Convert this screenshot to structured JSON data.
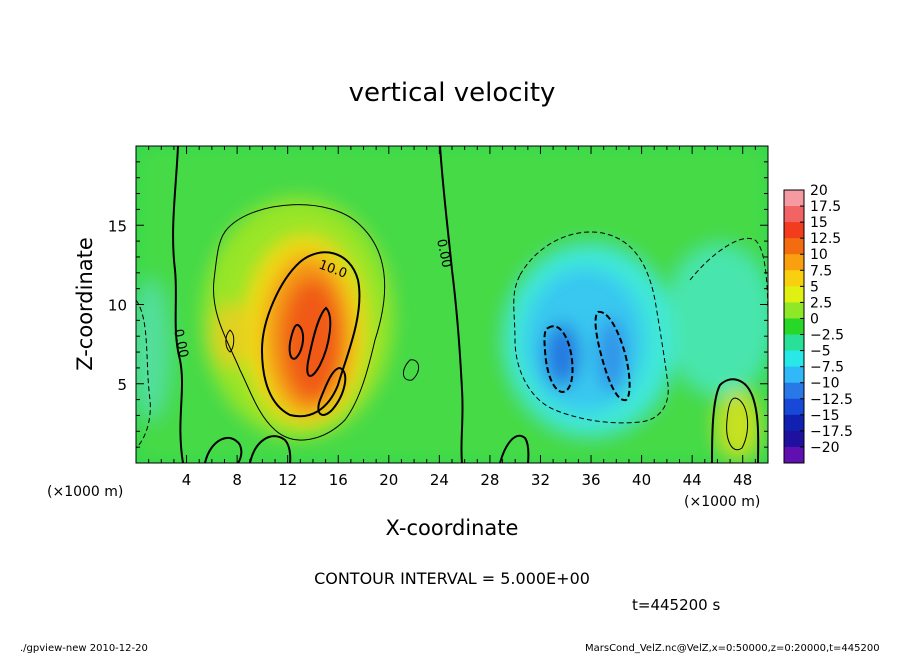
{
  "chart_data": {
    "type": "heatmap",
    "title": "vertical velocity",
    "xlabel": "X-coordinate",
    "ylabel": "Z-coordinate",
    "x_unit_left": "(×1000 m)",
    "x_unit_right": "(×1000 m)",
    "xlim": [
      0,
      50
    ],
    "ylim": [
      0,
      20
    ],
    "x_ticks": [
      4,
      8,
      12,
      16,
      20,
      24,
      28,
      32,
      36,
      40,
      44,
      48
    ],
    "y_ticks": [
      5,
      10,
      15
    ],
    "colorbar": {
      "levels": [
        20,
        17.5,
        15,
        12.5,
        10,
        7.5,
        5,
        2.5,
        0,
        -2.5,
        -5,
        -7.5,
        -10,
        -12.5,
        -15,
        -17.5,
        -20
      ],
      "labels": [
        "20",
        "17.5",
        "15",
        "12.5",
        "10",
        "7.5",
        "5",
        "2.5",
        "0",
        "−2.5",
        "−5",
        "−7.5",
        "−10",
        "−12.5",
        "−15",
        "−17.5",
        "−20"
      ],
      "colors": [
        "#f49aa0",
        "#f26363",
        "#f23c1e",
        "#f46c10",
        "#f8a010",
        "#f8d010",
        "#e0f010",
        "#8ee828",
        "#28d828",
        "#28e098",
        "#28e8e8",
        "#30b8f8",
        "#2878e8",
        "#1848d8",
        "#1020b0",
        "#2010a0",
        "#6010b0"
      ]
    },
    "contour_labels": [
      "10.0",
      "0.00",
      "0.00"
    ],
    "contour_interval": "CONTOUR INTERVAL = 5.000E+00",
    "time": "t=445200 s",
    "features": [
      {
        "x": 14,
        "z": 8,
        "value": 15
      },
      {
        "x": 14,
        "z": 11,
        "value": 10
      },
      {
        "x": 7.5,
        "z": 7.5,
        "value": 5
      },
      {
        "x": 47.5,
        "z": 2.5,
        "value": 5
      },
      {
        "x": 33.5,
        "z": 7,
        "value": -10
      },
      {
        "x": 37.5,
        "z": 7.5,
        "value": -10
      }
    ]
  },
  "footer": {
    "left": "./gpview-new   2010-12-20",
    "right": "MarsCond_VelZ.nc@VelZ,x=0:50000,z=0:20000,t=445200"
  }
}
